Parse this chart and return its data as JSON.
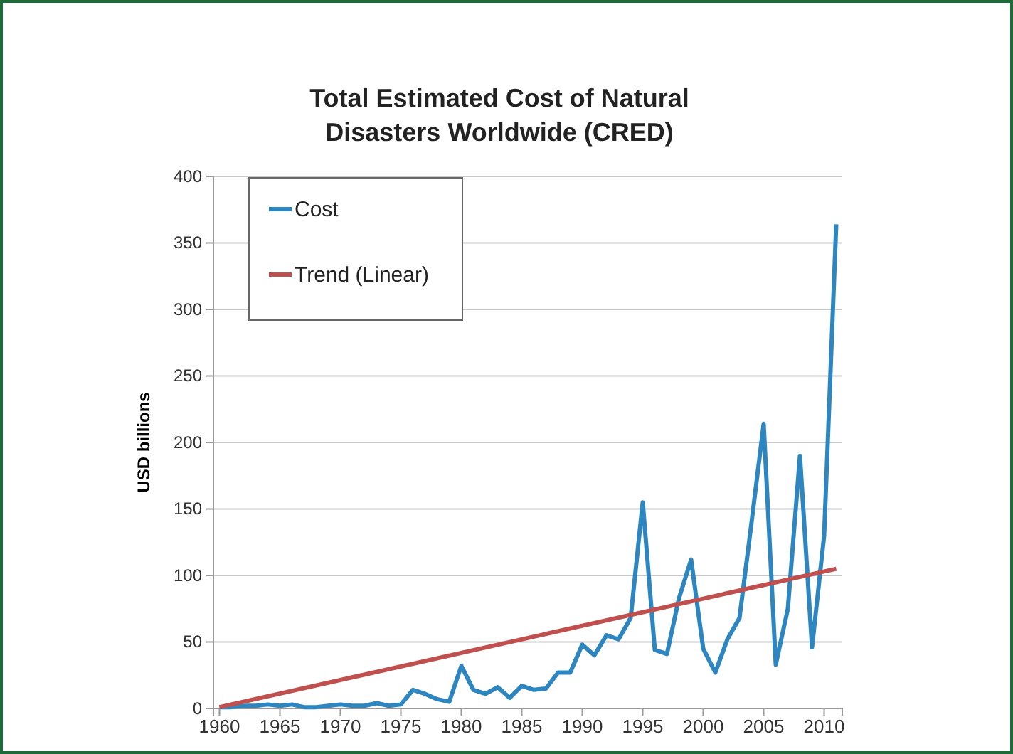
{
  "chart_data": {
    "type": "line",
    "title": "Total Estimated Cost of Natural Disasters Worldwide  (CRED)",
    "ylabel": "USD billions",
    "x": [
      1960,
      1961,
      1962,
      1963,
      1964,
      1965,
      1966,
      1967,
      1968,
      1969,
      1970,
      1971,
      1972,
      1973,
      1974,
      1975,
      1976,
      1977,
      1978,
      1979,
      1980,
      1981,
      1982,
      1983,
      1984,
      1985,
      1986,
      1987,
      1988,
      1989,
      1990,
      1991,
      1992,
      1993,
      1994,
      1995,
      1996,
      1997,
      1998,
      1999,
      2000,
      2001,
      2002,
      2003,
      2004,
      2005,
      2006,
      2007,
      2008,
      2009,
      2010,
      2011
    ],
    "series": [
      {
        "name": "Cost",
        "color": "#2e86c1",
        "values": [
          1,
          1,
          2,
          2,
          3,
          2,
          3,
          1,
          1,
          2,
          3,
          2,
          2,
          4,
          2,
          3,
          14,
          11,
          7,
          5,
          32,
          14,
          11,
          16,
          8,
          17,
          14,
          15,
          27,
          27,
          48,
          40,
          55,
          52,
          68,
          155,
          44,
          41,
          83,
          112,
          45,
          27,
          52,
          68,
          140,
          214,
          33,
          75,
          190,
          46,
          130,
          364
        ]
      },
      {
        "name": "Trend (Linear)",
        "color": "#c0504d",
        "x": [
          1960,
          2011
        ],
        "values": [
          1,
          105
        ]
      }
    ],
    "xlim": [
      1959.5,
      2011.5
    ],
    "xticks": [
      1960,
      1965,
      1970,
      1975,
      1980,
      1985,
      1990,
      1995,
      2000,
      2005,
      2010
    ],
    "ylim": [
      0,
      400
    ],
    "yticks": [
      0,
      50,
      100,
      150,
      200,
      250,
      300,
      350,
      400
    ],
    "grid": "y",
    "legend": "top left",
    "marker": "none",
    "line_style": "solid"
  }
}
